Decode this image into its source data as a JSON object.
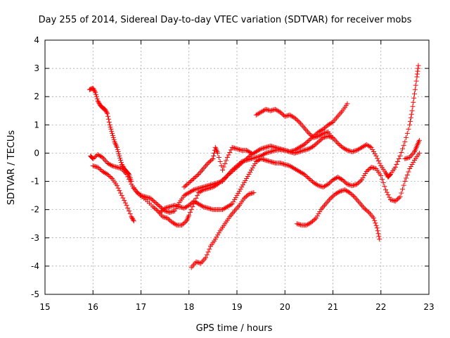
{
  "chart_data": {
    "type": "scatter",
    "title": "Day 255 of 2014, Sidereal Day-to-day VTEC variation (SDTVAR) for receiver mobs",
    "xlabel": "GPS time / hours",
    "ylabel": "SDTVAR / TECUs",
    "xlim": [
      15,
      23
    ],
    "ylim": [
      -5,
      4
    ],
    "xticks": [
      "15",
      "16",
      "17",
      "18",
      "19",
      "20",
      "21",
      "22",
      "23"
    ],
    "yticks": [
      "4",
      "3",
      "2",
      "1",
      "0",
      "-1",
      "-2",
      "-3",
      "-4",
      "-5"
    ],
    "grid": true,
    "marker": "+",
    "color": "#ff0000",
    "series": [
      {
        "name": "track-1",
        "points": [
          [
            15.93,
            2.25
          ],
          [
            16.0,
            2.3
          ],
          [
            16.05,
            2.15
          ],
          [
            16.1,
            1.85
          ],
          [
            16.15,
            1.7
          ],
          [
            16.2,
            1.6
          ],
          [
            16.25,
            1.55
          ],
          [
            16.3,
            1.4
          ],
          [
            16.35,
            1.0
          ],
          [
            16.4,
            0.7
          ],
          [
            16.45,
            0.4
          ],
          [
            16.5,
            0.2
          ],
          [
            16.55,
            -0.1
          ],
          [
            16.6,
            -0.4
          ],
          [
            16.65,
            -0.55
          ],
          [
            16.7,
            -0.65
          ],
          [
            16.75,
            -0.75
          ],
          [
            16.8,
            -1.0
          ]
        ]
      },
      {
        "name": "track-2",
        "points": [
          [
            15.95,
            -0.1
          ],
          [
            16.0,
            -0.2
          ],
          [
            16.1,
            -0.05
          ],
          [
            16.2,
            -0.15
          ],
          [
            16.3,
            -0.35
          ],
          [
            16.4,
            -0.45
          ],
          [
            16.5,
            -0.5
          ],
          [
            16.6,
            -0.55
          ],
          [
            16.7,
            -0.75
          ],
          [
            16.8,
            -1.1
          ],
          [
            16.9,
            -1.35
          ],
          [
            17.0,
            -1.5
          ],
          [
            17.1,
            -1.55
          ],
          [
            17.2,
            -1.6
          ],
          [
            17.3,
            -1.75
          ],
          [
            17.4,
            -1.9
          ],
          [
            17.5,
            -2.05
          ],
          [
            17.6,
            -2.1
          ],
          [
            17.7,
            -2.05
          ],
          [
            17.8,
            -1.75
          ],
          [
            17.9,
            -1.5
          ],
          [
            18.0,
            -1.4
          ],
          [
            18.1,
            -1.3
          ],
          [
            18.2,
            -1.25
          ],
          [
            18.3,
            -1.2
          ],
          [
            18.4,
            -1.15
          ],
          [
            18.5,
            -1.1
          ],
          [
            18.6,
            -1.05
          ],
          [
            18.7,
            -1.0
          ],
          [
            18.8,
            -0.8
          ],
          [
            18.9,
            -0.6
          ],
          [
            19.0,
            -0.45
          ],
          [
            19.1,
            -0.3
          ],
          [
            19.2,
            -0.25
          ],
          [
            19.3,
            -0.2
          ],
          [
            19.4,
            -0.15
          ],
          [
            19.5,
            -0.1
          ],
          [
            19.6,
            0.0
          ],
          [
            19.7,
            0.05
          ],
          [
            19.8,
            0.1
          ],
          [
            19.9,
            0.12
          ],
          [
            20.0,
            0.1
          ],
          [
            20.1,
            0.05
          ],
          [
            20.2,
            0.0
          ],
          [
            20.3,
            0.05
          ],
          [
            20.4,
            0.1
          ],
          [
            20.5,
            0.15
          ],
          [
            20.6,
            0.25
          ],
          [
            20.7,
            0.4
          ],
          [
            20.8,
            0.55
          ],
          [
            20.9,
            0.6
          ],
          [
            21.0,
            0.55
          ],
          [
            21.1,
            0.35
          ],
          [
            21.2,
            0.2
          ],
          [
            21.3,
            0.1
          ],
          [
            21.4,
            0.05
          ],
          [
            21.5,
            0.1
          ],
          [
            21.6,
            0.2
          ],
          [
            21.7,
            0.3
          ],
          [
            21.8,
            0.2
          ],
          [
            21.9,
            -0.1
          ],
          [
            22.0,
            -0.45
          ],
          [
            22.1,
            -0.7
          ],
          [
            22.15,
            -0.85
          ],
          [
            22.2,
            -0.75
          ],
          [
            22.3,
            -0.5
          ],
          [
            22.4,
            -0.1
          ],
          [
            22.5,
            0.4
          ],
          [
            22.6,
            1.0
          ],
          [
            22.65,
            1.5
          ],
          [
            22.7,
            2.1
          ],
          [
            22.75,
            2.7
          ],
          [
            22.78,
            3.1
          ]
        ]
      },
      {
        "name": "track-3",
        "points": [
          [
            16.0,
            -0.45
          ],
          [
            16.1,
            -0.5
          ],
          [
            16.2,
            -0.65
          ],
          [
            16.3,
            -0.75
          ],
          [
            16.4,
            -0.9
          ],
          [
            16.5,
            -1.15
          ],
          [
            16.6,
            -1.5
          ],
          [
            16.7,
            -1.85
          ],
          [
            16.8,
            -2.25
          ],
          [
            16.85,
            -2.4
          ]
        ]
      },
      {
        "name": "track-4",
        "points": [
          [
            16.85,
            -1.25
          ],
          [
            16.95,
            -1.45
          ],
          [
            17.1,
            -1.65
          ],
          [
            17.25,
            -1.9
          ],
          [
            17.35,
            -2.05
          ],
          [
            17.45,
            -2.25
          ],
          [
            17.55,
            -2.3
          ],
          [
            17.65,
            -2.45
          ],
          [
            17.75,
            -2.55
          ],
          [
            17.85,
            -2.55
          ],
          [
            17.95,
            -2.4
          ],
          [
            18.0,
            -2.2
          ],
          [
            18.1,
            -1.8
          ],
          [
            18.2,
            -1.4
          ],
          [
            18.3,
            -1.3
          ],
          [
            18.4,
            -1.25
          ],
          [
            18.5,
            -1.2
          ],
          [
            18.6,
            -1.1
          ],
          [
            18.7,
            -0.95
          ],
          [
            18.8,
            -0.8
          ],
          [
            18.9,
            -0.65
          ],
          [
            19.0,
            -0.5
          ],
          [
            19.1,
            -0.35
          ],
          [
            19.2,
            -0.2
          ],
          [
            19.3,
            -0.05
          ],
          [
            19.4,
            0.05
          ],
          [
            19.5,
            0.15
          ],
          [
            19.6,
            0.2
          ],
          [
            19.7,
            0.25
          ],
          [
            19.8,
            0.2
          ],
          [
            19.9,
            0.15
          ],
          [
            20.0,
            0.1
          ],
          [
            20.1,
            0.05
          ],
          [
            20.2,
            0.1
          ],
          [
            20.3,
            0.2
          ],
          [
            20.4,
            0.3
          ],
          [
            20.5,
            0.45
          ],
          [
            20.6,
            0.6
          ],
          [
            20.7,
            0.75
          ],
          [
            20.8,
            0.85
          ],
          [
            20.9,
            1.0
          ],
          [
            21.0,
            1.1
          ],
          [
            21.1,
            1.3
          ],
          [
            21.2,
            1.5
          ],
          [
            21.3,
            1.75
          ]
        ]
      },
      {
        "name": "track-5",
        "points": [
          [
            17.4,
            -2.1
          ],
          [
            17.5,
            -1.95
          ],
          [
            17.6,
            -1.9
          ],
          [
            17.7,
            -1.85
          ],
          [
            17.8,
            -1.9
          ],
          [
            17.9,
            -1.95
          ],
          [
            18.0,
            -1.85
          ],
          [
            18.1,
            -1.7
          ],
          [
            18.2,
            -1.8
          ],
          [
            18.3,
            -1.9
          ],
          [
            18.4,
            -1.95
          ],
          [
            18.5,
            -2.0
          ],
          [
            18.6,
            -2.0
          ],
          [
            18.7,
            -2.0
          ],
          [
            18.8,
            -1.9
          ],
          [
            18.9,
            -1.8
          ],
          [
            19.0,
            -1.5
          ],
          [
            19.1,
            -1.2
          ],
          [
            19.2,
            -0.9
          ],
          [
            19.3,
            -0.6
          ],
          [
            19.4,
            -0.3
          ],
          [
            19.5,
            -0.2
          ],
          [
            19.6,
            -0.25
          ],
          [
            19.7,
            -0.3
          ],
          [
            19.8,
            -0.35
          ],
          [
            19.9,
            -0.35
          ],
          [
            20.0,
            -0.4
          ],
          [
            20.1,
            -0.45
          ],
          [
            20.2,
            -0.55
          ],
          [
            20.3,
            -0.65
          ],
          [
            20.4,
            -0.75
          ],
          [
            20.5,
            -0.9
          ],
          [
            20.6,
            -1.05
          ],
          [
            20.7,
            -1.15
          ],
          [
            20.8,
            -1.2
          ],
          [
            20.9,
            -1.1
          ],
          [
            21.0,
            -0.95
          ],
          [
            21.1,
            -0.85
          ],
          [
            21.2,
            -0.95
          ],
          [
            21.3,
            -1.1
          ],
          [
            21.4,
            -1.15
          ],
          [
            21.5,
            -1.1
          ],
          [
            21.6,
            -0.95
          ],
          [
            21.7,
            -0.65
          ],
          [
            21.8,
            -0.5
          ],
          [
            21.9,
            -0.55
          ],
          [
            22.0,
            -0.8
          ],
          [
            22.1,
            -1.3
          ],
          [
            22.2,
            -1.65
          ],
          [
            22.3,
            -1.7
          ],
          [
            22.4,
            -1.55
          ],
          [
            22.5,
            -1.0
          ],
          [
            22.6,
            -0.55
          ],
          [
            22.7,
            -0.25
          ],
          [
            22.8,
            0.0
          ]
        ]
      },
      {
        "name": "track-6",
        "points": [
          [
            17.9,
            -1.2
          ],
          [
            18.0,
            -1.05
          ],
          [
            18.1,
            -0.9
          ],
          [
            18.2,
            -0.75
          ],
          [
            18.3,
            -0.55
          ],
          [
            18.4,
            -0.35
          ],
          [
            18.5,
            -0.2
          ],
          [
            18.55,
            0.2
          ],
          [
            18.6,
            0.0
          ],
          [
            18.7,
            -0.6
          ],
          [
            18.8,
            -0.15
          ],
          [
            18.9,
            0.2
          ],
          [
            19.0,
            0.15
          ],
          [
            19.1,
            0.1
          ],
          [
            19.2,
            0.1
          ],
          [
            19.3,
            0.0
          ]
        ]
      },
      {
        "name": "track-7",
        "points": [
          [
            18.05,
            -4.05
          ],
          [
            18.15,
            -3.85
          ],
          [
            18.25,
            -3.9
          ],
          [
            18.35,
            -3.7
          ],
          [
            18.45,
            -3.3
          ],
          [
            18.55,
            -3.05
          ],
          [
            18.65,
            -2.75
          ],
          [
            18.75,
            -2.5
          ],
          [
            18.85,
            -2.25
          ],
          [
            18.95,
            -2.05
          ],
          [
            19.05,
            -1.85
          ],
          [
            19.15,
            -1.6
          ],
          [
            19.25,
            -1.45
          ],
          [
            19.35,
            -1.4
          ]
        ]
      },
      {
        "name": "track-8",
        "points": [
          [
            19.4,
            1.35
          ],
          [
            19.5,
            1.45
          ],
          [
            19.6,
            1.55
          ],
          [
            19.7,
            1.5
          ],
          [
            19.8,
            1.55
          ],
          [
            19.9,
            1.45
          ],
          [
            20.0,
            1.3
          ],
          [
            20.1,
            1.35
          ],
          [
            20.2,
            1.25
          ],
          [
            20.3,
            1.1
          ],
          [
            20.4,
            0.9
          ],
          [
            20.5,
            0.7
          ],
          [
            20.6,
            0.55
          ],
          [
            20.7,
            0.6
          ],
          [
            20.8,
            0.7
          ],
          [
            20.9,
            0.75
          ],
          [
            21.0,
            0.5
          ]
        ]
      },
      {
        "name": "track-9",
        "points": [
          [
            20.25,
            -2.5
          ],
          [
            20.35,
            -2.55
          ],
          [
            20.45,
            -2.55
          ],
          [
            20.55,
            -2.45
          ],
          [
            20.65,
            -2.3
          ],
          [
            20.75,
            -2.0
          ],
          [
            20.85,
            -1.8
          ],
          [
            20.95,
            -1.6
          ],
          [
            21.05,
            -1.45
          ],
          [
            21.15,
            -1.35
          ],
          [
            21.25,
            -1.3
          ],
          [
            21.35,
            -1.4
          ],
          [
            21.45,
            -1.55
          ],
          [
            21.55,
            -1.75
          ],
          [
            21.65,
            -1.95
          ],
          [
            21.75,
            -2.1
          ],
          [
            21.85,
            -2.3
          ],
          [
            21.92,
            -2.65
          ],
          [
            21.97,
            -3.05
          ]
        ]
      },
      {
        "name": "track-10",
        "points": [
          [
            22.5,
            -0.2
          ],
          [
            22.6,
            -0.15
          ],
          [
            22.7,
            0.05
          ],
          [
            22.75,
            0.25
          ],
          [
            22.8,
            0.45
          ]
        ]
      }
    ]
  }
}
